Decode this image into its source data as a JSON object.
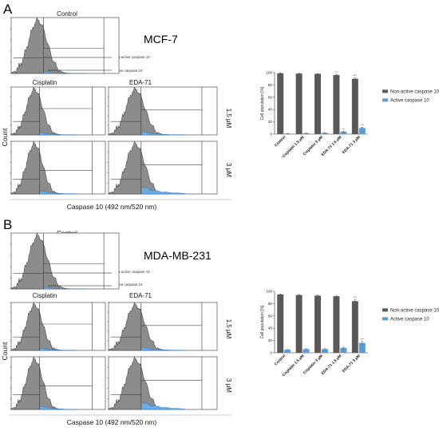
{
  "figure": {
    "panels": [
      {
        "letter": "A",
        "cell_line": "MCF-7",
        "control_label": "Control",
        "cisplatin_label": "Cisplatin",
        "eda_label": "EDA-71",
        "dose1_label": "1.5 μM",
        "dose2_label": "3 μM",
        "y_label": "Count",
        "x_label": "Caspase 10 (492 nm/520 nm)",
        "annot_nonactive": "Non-active caspase 10",
        "annot_active": "Active caspase 10"
      },
      {
        "letter": "B",
        "cell_line": "MDA-MB-231",
        "control_label": "Control",
        "cisplatin_label": "Cisplatin",
        "eda_label": "EDA-71",
        "dose1_label": "1.5 μM",
        "dose2_label": "3 μM",
        "y_label": "Count",
        "x_label": "Caspase 10 (492 nm/520 nm)",
        "annot_nonactive": "Non-active caspase 10",
        "annot_active": "Active caspase 10"
      }
    ]
  },
  "chart_data": [
    {
      "type": "bar",
      "panel": "A",
      "categories": [
        "Control",
        "Cisplatin 1.5 μM",
        "Cisplatin 3 μM",
        "EDA-71 1.5 μM",
        "EDA-71 3 μM"
      ],
      "series": [
        {
          "name": "Non-active caspase 10",
          "values": [
            99,
            98.5,
            98,
            96,
            90
          ],
          "errors": [
            0.5,
            0.5,
            0.5,
            1,
            1.5
          ],
          "color": "#595959"
        },
        {
          "name": "Active caspase 10",
          "values": [
            1,
            1.5,
            2,
            4,
            10
          ],
          "errors": [
            0.3,
            0.4,
            0.4,
            0.8,
            1.2
          ],
          "color": "#5b9bd5"
        }
      ],
      "significance": [
        {
          "category": 3,
          "series": 0,
          "label": "**"
        },
        {
          "category": 3,
          "series": 1,
          "label": "**"
        },
        {
          "category": 4,
          "series": 0,
          "label": "***"
        },
        {
          "category": 4,
          "series": 1,
          "label": "***"
        }
      ],
      "ylabel": "Cell population [%]",
      "ylim": [
        0,
        100
      ],
      "yticks": [
        0,
        20,
        40,
        60,
        80,
        100
      ],
      "legend": "right"
    },
    {
      "type": "bar",
      "panel": "B",
      "categories": [
        "Control",
        "Cisplatin 1.5 μM",
        "Cisplatin 3 μM",
        "EDA-71 1.5 μM",
        "EDA-71 3 μM"
      ],
      "series": [
        {
          "name": "Non-active caspase 10",
          "values": [
            95,
            94,
            93,
            92,
            84
          ],
          "errors": [
            0.5,
            0.8,
            0.8,
            0.8,
            2.5
          ],
          "color": "#595959"
        },
        {
          "name": "Active caspase 10",
          "values": [
            5,
            6,
            6,
            8,
            16
          ],
          "errors": [
            0.6,
            0.8,
            0.8,
            1,
            2.5
          ],
          "color": "#5b9bd5"
        }
      ],
      "significance": [
        {
          "category": 4,
          "series": 0,
          "label": "***"
        },
        {
          "category": 4,
          "series": 1,
          "label": "***"
        }
      ],
      "ylabel": "Cell population [%]",
      "ylim": [
        0,
        100
      ],
      "yticks": [
        0,
        20,
        40,
        60,
        80,
        100
      ],
      "legend": "right"
    }
  ]
}
